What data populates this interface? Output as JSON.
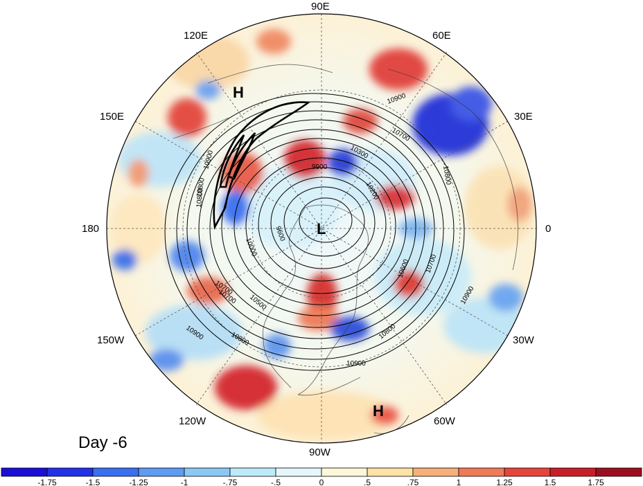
{
  "panel_label": "Day -6",
  "longitude_labels": {
    "top": "90E",
    "upper_left": "120E",
    "upper_right": "60E",
    "left_upper": "150E",
    "right_upper": "30E",
    "left": "180",
    "right": "0",
    "left_lower": "150W",
    "right_lower": "30W",
    "lower_left": "120W",
    "lower_right": "60W",
    "bottom": "90W"
  },
  "pressure_centers": {
    "high_north": "H",
    "low_center": "L",
    "high_south": "H"
  },
  "contour_labels": [
    "10900",
    "10700",
    "10300",
    "9900",
    "10200",
    "10800",
    "9600",
    "10000",
    "10800",
    "10500",
    "10700",
    "10600",
    "10700",
    "10900",
    "10700",
    "10900",
    "10800",
    "10800",
    "10900",
    "10800",
    "10900"
  ],
  "colorbar": {
    "labels": [
      "-1.75",
      "-1.5",
      "-1.25",
      "-1",
      "-.75",
      "-.5",
      "0",
      ".5",
      ".75",
      "1",
      "1.25",
      "1.5",
      "1.75"
    ],
    "colors": [
      "#1a0fd6",
      "#2230e8",
      "#3a6ff0",
      "#5e9bf2",
      "#8cc8f5",
      "#bdebfa",
      "#e6f7fb",
      "#fff7d9",
      "#fde3a6",
      "#f7b07a",
      "#ef7a57",
      "#e6453a",
      "#c81e2a",
      "#9c0f1e"
    ]
  }
}
